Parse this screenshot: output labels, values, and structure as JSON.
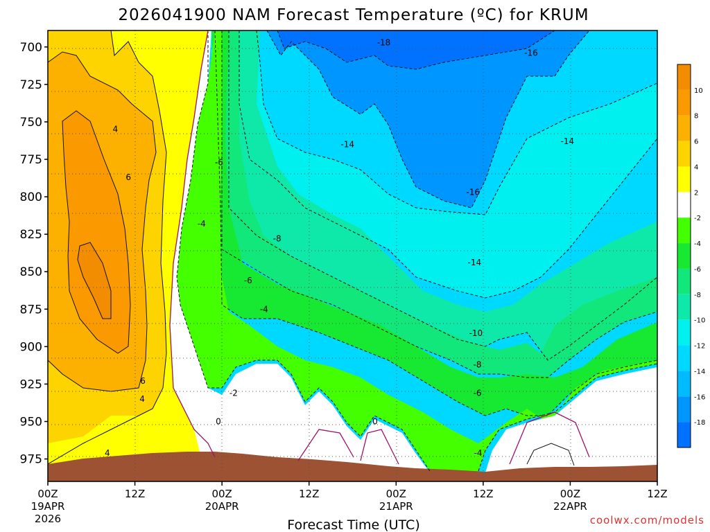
{
  "chart_data": {
    "type": "heatmap",
    "title": "2026041900 NAM Forecast Temperature (ºC) for KRUM",
    "xlabel": "Forecast Time (UTC)",
    "ylabel": "",
    "x_ticks": [
      "00Z",
      "12Z",
      "00Z",
      "12Z",
      "00Z",
      "12Z",
      "00Z",
      "12Z"
    ],
    "x_dates": [
      "19APR",
      "",
      "20APR",
      "",
      "21APR",
      "",
      "22APR",
      ""
    ],
    "x_year": "2026",
    "x_range_hours": [
      0,
      84
    ],
    "y_ticks": [
      700,
      725,
      750,
      775,
      800,
      825,
      850,
      875,
      900,
      925,
      950,
      975
    ],
    "y_range_hpa": [
      689,
      990
    ],
    "colorbar": {
      "labels": [
        "10",
        "8",
        "6",
        "4",
        "2",
        "-2",
        "-4",
        "-6",
        "-8",
        "-10",
        "-12",
        "-14",
        "-16",
        "-18"
      ],
      "bounds": [
        12,
        10,
        8,
        6,
        4,
        2,
        -2,
        -4,
        -6,
        -8,
        -10,
        -12,
        -14,
        -16,
        -18,
        -20
      ],
      "colors": [
        "#f28c00",
        "#fa9a00",
        "#fcb100",
        "#fdd300",
        "#ffff00",
        "#ffffff",
        "#44ff00",
        "#17e831",
        "#12e77c",
        "#0ee8a9",
        "#00f0f0",
        "#00d9ff",
        "#00bbff",
        "#0096ff",
        "#0072ff"
      ]
    },
    "terrain_color": "#9c5233",
    "contour_labels": [
      {
        "text": "-18",
        "x_h": 46.3,
        "p": 697
      },
      {
        "text": "-16",
        "x_h": 66.6,
        "p": 704
      },
      {
        "text": "-14",
        "x_h": 41.3,
        "p": 765
      },
      {
        "text": "-14",
        "x_h": 71.6,
        "p": 763
      },
      {
        "text": "-16",
        "x_h": 58.6,
        "p": 797
      },
      {
        "text": "-14",
        "x_h": 58.8,
        "p": 844
      },
      {
        "text": "-10",
        "x_h": 59.0,
        "p": 891
      },
      {
        "text": "-8",
        "x_h": 59.2,
        "p": 912
      },
      {
        "text": "-6",
        "x_h": 59.2,
        "p": 931
      },
      {
        "text": "-4",
        "x_h": 59.3,
        "p": 971
      },
      {
        "text": "-6",
        "x_h": 23.6,
        "p": 777
      },
      {
        "text": "-4",
        "x_h": 21.2,
        "p": 818
      },
      {
        "text": "-8",
        "x_h": 31.6,
        "p": 828
      },
      {
        "text": "-6",
        "x_h": 27.6,
        "p": 856
      },
      {
        "text": "-4",
        "x_h": 29.8,
        "p": 875
      },
      {
        "text": "-2",
        "x_h": 25.6,
        "p": 931
      },
      {
        "text": "0",
        "x_h": 23.5,
        "p": 950
      },
      {
        "text": "0",
        "x_h": 45.1,
        "p": 950
      },
      {
        "text": "4",
        "x_h": 9.3,
        "p": 755
      },
      {
        "text": "6",
        "x_h": 11.1,
        "p": 787
      },
      {
        "text": "6",
        "x_h": 13.1,
        "p": 923
      },
      {
        "text": "4",
        "x_h": 13.0,
        "p": 935
      },
      {
        "text": "4",
        "x_h": 8.2,
        "p": 971
      }
    ]
  },
  "credit": "coolwx.com/models"
}
